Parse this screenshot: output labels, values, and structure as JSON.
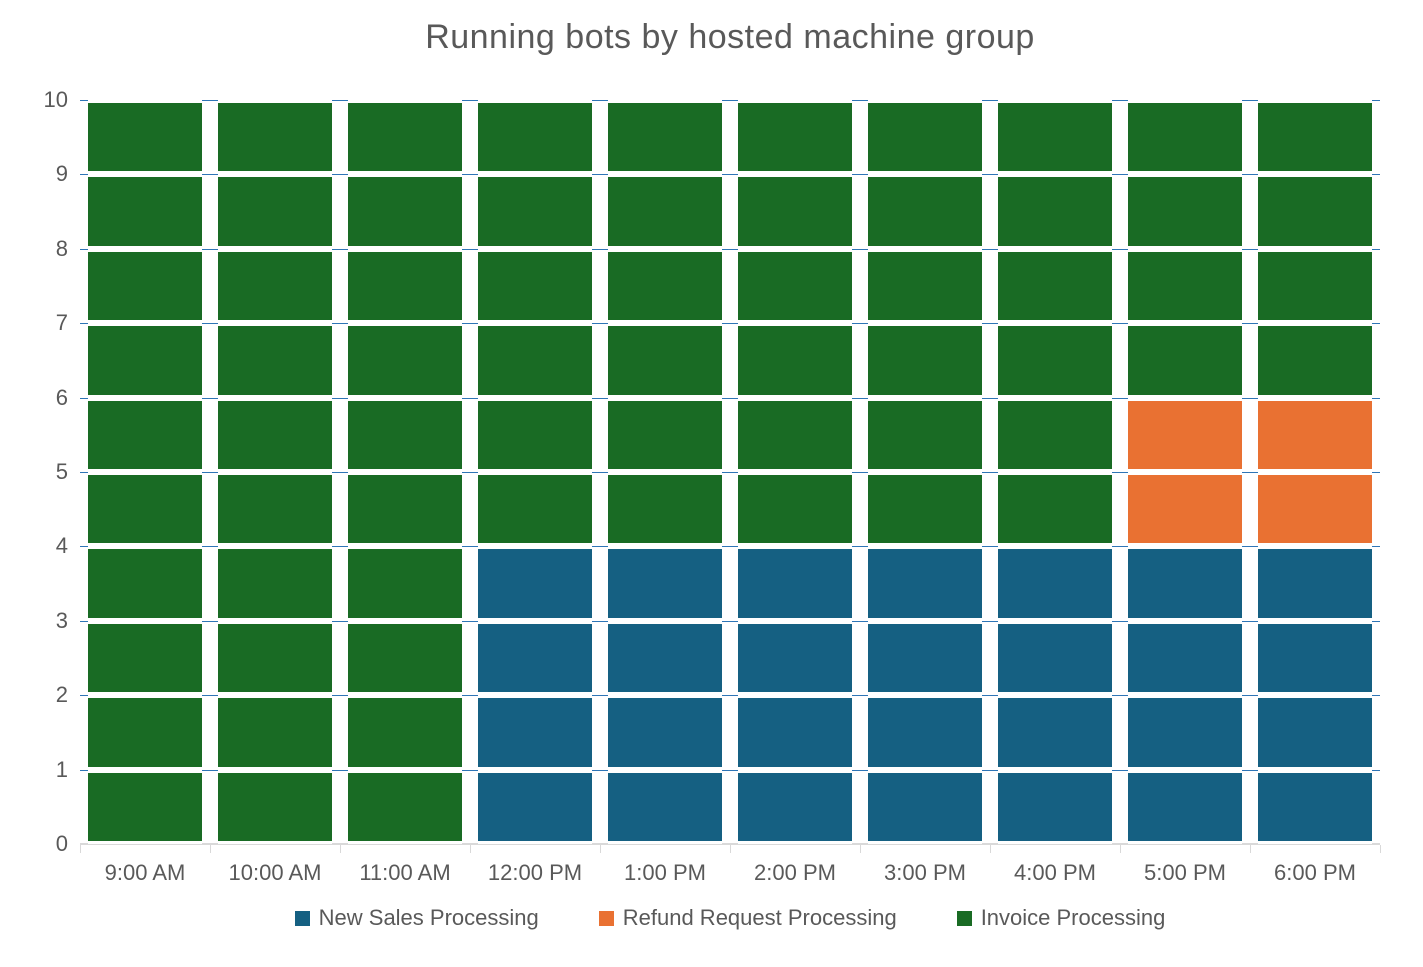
{
  "chart_data": {
    "type": "bar",
    "stacked": true,
    "title": "Running bots by hosted machine group",
    "categories": [
      "9:00 AM",
      "10:00 AM",
      "11:00 AM",
      "12:00 PM",
      "1:00 PM",
      "2:00 PM",
      "3:00 PM",
      "4:00 PM",
      "5:00 PM",
      "6:00 PM"
    ],
    "series": [
      {
        "name": "New Sales Processing",
        "color": "#156082",
        "values": [
          0,
          0,
          0,
          4,
          4,
          4,
          4,
          4,
          4,
          4
        ]
      },
      {
        "name": "Refund Request Processing",
        "color": "#E97132",
        "values": [
          0,
          0,
          0,
          0,
          0,
          0,
          0,
          0,
          2,
          2
        ]
      },
      {
        "name": "Invoice Processing",
        "color": "#196B24",
        "values": [
          10,
          10,
          10,
          6,
          6,
          6,
          6,
          6,
          4,
          4
        ]
      }
    ],
    "xlabel": "",
    "ylabel": "",
    "ylim": [
      0,
      10
    ],
    "y_ticks": [
      0,
      1,
      2,
      3,
      4,
      5,
      6,
      7,
      8,
      9,
      10
    ],
    "grid": true,
    "legend_position": "bottom"
  },
  "colors": {
    "gridline": "#2E75B6",
    "axis_line": "#D9D9D9",
    "text": "#595959",
    "background": "#FFFFFF"
  }
}
